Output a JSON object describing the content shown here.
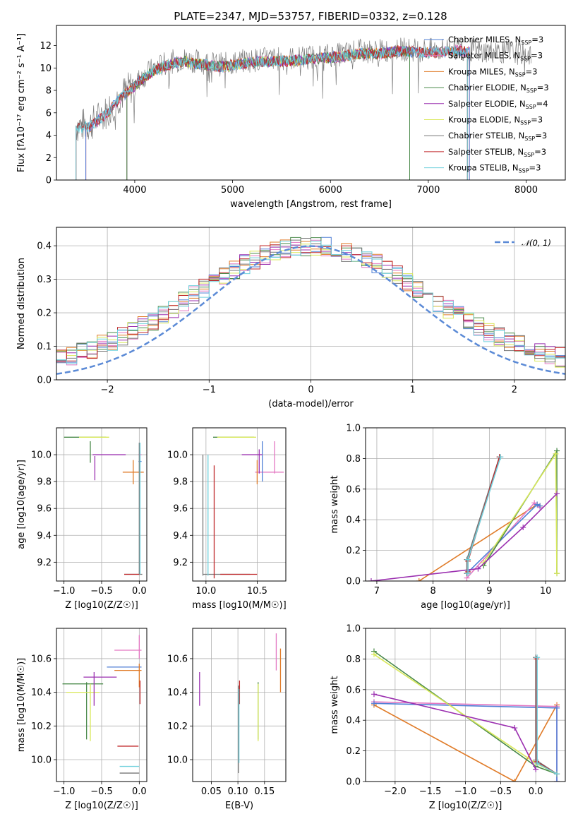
{
  "title": "PLATE=2347, MJD=53757, FIBERID=0332, z=0.128",
  "colors": {
    "Chabrier MILES": "#4f7fd6",
    "Salpeter MILES": "#e377c2",
    "Kroupa MILES": "#e07b28",
    "Chabrier ELODIE": "#4a8a4a",
    "Salpeter ELODIE": "#9b30b0",
    "Kroupa ELODIE": "#d9e85a",
    "Chabrier STELIB": "#777777",
    "Salpeter STELIB": "#c0282a",
    "Kroupa STELIB": "#6fd0dc"
  },
  "chart_data": [
    {
      "id": "spectrum",
      "type": "line",
      "xlabel": "wavelength [Angstrom, rest frame]",
      "ylabel": "Flux [f$_\\lambda$10$^{-17}$ erg cm$^{-2}$ s$^{-1}$ A$^{-1}$]",
      "ylabel_display": "Flux [fλ10⁻¹⁷ erg cm⁻² s⁻¹ A⁻¹]",
      "xlim": [
        3200,
        8400
      ],
      "ylim": [
        0,
        13.8
      ],
      "xticks": [
        4000,
        5000,
        6000,
        7000,
        8000
      ],
      "yticks": [
        0,
        2,
        4,
        6,
        8,
        10,
        12
      ],
      "legend_position": "top-right",
      "legend": [
        {
          "name": "Chabrier MILES",
          "nssp": "3"
        },
        {
          "name": "Salpeter MILES",
          "nssp": "3"
        },
        {
          "name": "Kroupa MILES",
          "nssp": "3"
        },
        {
          "name": "Chabrier ELODIE",
          "nssp": "3"
        },
        {
          "name": "Salpeter ELODIE",
          "nssp": "4"
        },
        {
          "name": "Kroupa ELODIE",
          "nssp": "3"
        },
        {
          "name": "Chabrier STELIB",
          "nssp": "3"
        },
        {
          "name": "Salpeter STELIB",
          "nssp": "3"
        },
        {
          "name": "Kroupa STELIB",
          "nssp": "3"
        }
      ],
      "continuum": [
        [
          3400,
          4.8
        ],
        [
          3550,
          5.0
        ],
        [
          3700,
          6.0
        ],
        [
          3850,
          7.5
        ],
        [
          3950,
          8.2
        ],
        [
          4050,
          9.0
        ],
        [
          4200,
          10.0
        ],
        [
          4350,
          10.5
        ],
        [
          4500,
          10.8
        ],
        [
          4700,
          10.5
        ],
        [
          4900,
          10.3
        ],
        [
          5100,
          10.6
        ],
        [
          5300,
          10.8
        ],
        [
          5500,
          10.8
        ],
        [
          5700,
          10.9
        ],
        [
          5900,
          11.1
        ],
        [
          6100,
          11.2
        ],
        [
          6300,
          11.5
        ],
        [
          6500,
          11.5
        ],
        [
          6700,
          11.7
        ],
        [
          6900,
          11.6
        ],
        [
          7100,
          11.6
        ],
        [
          7300,
          11.8
        ],
        [
          7500,
          11.5
        ],
        [
          7700,
          11.5
        ],
        [
          7900,
          11.4
        ],
        [
          8050,
          11.2
        ]
      ],
      "model_ranges": [
        {
          "name": "Kroupa MILES",
          "x": [
            3500,
            7420
          ]
        },
        {
          "name": "Salpeter MILES",
          "x": [
            3500,
            7420
          ]
        },
        {
          "name": "Chabrier MILES",
          "x": [
            3500,
            7420
          ]
        },
        {
          "name": "Kroupa ELODIE",
          "x": [
            3920,
            6810
          ]
        },
        {
          "name": "Salpeter ELODIE",
          "x": [
            3920,
            6810
          ]
        },
        {
          "name": "Chabrier ELODIE",
          "x": [
            3920,
            6810
          ]
        },
        {
          "name": "Chabrier STELIB",
          "x": [
            3400,
            7400
          ]
        },
        {
          "name": "Salpeter STELIB",
          "x": [
            3400,
            7400
          ]
        },
        {
          "name": "Kroupa STELIB",
          "x": [
            3400,
            7400
          ]
        }
      ]
    },
    {
      "id": "residuals",
      "type": "line",
      "xlabel": "(data-model)/error",
      "ylabel": "Normed distribution",
      "xlim": [
        -2.5,
        2.5
      ],
      "ylim": [
        0,
        0.455
      ],
      "xticks": [
        -2,
        -1,
        0,
        1,
        2
      ],
      "yticks": [
        0.0,
        0.1,
        0.2,
        0.3,
        0.4
      ],
      "grid": true,
      "legend_position": "top-right",
      "reference": {
        "name": "N(0,1)",
        "mean": 0,
        "sigma": 1
      },
      "bin_width": 0.1,
      "x_start": -2.5
    },
    {
      "id": "age_vs_Z",
      "type": "scatter",
      "xlabel": "Z [log10(Z/Z☉)]",
      "ylabel": "age  [log10(age/yr)]",
      "xlim": [
        -1.1,
        0.1
      ],
      "ylim": [
        9.06,
        10.2
      ],
      "xticks": [
        -1.0,
        -0.5,
        0.0
      ],
      "yticks": [
        9.2,
        9.4,
        9.6,
        9.8,
        10.0
      ],
      "grid": true,
      "points": [
        {
          "s": "Kroupa MILES",
          "x": -0.08,
          "y": 9.87,
          "ex": 0.14,
          "ey": 0.09
        },
        {
          "s": "Salpeter MILES",
          "x": 0.01,
          "y": 10.0,
          "ex": 0.02,
          "ey": 0.05
        },
        {
          "s": "Chabrier MILES",
          "x": 0.01,
          "y": 9.95,
          "ex": 0.02,
          "ey": 0.08
        },
        {
          "s": "Chabrier ELODIE",
          "x": -0.72,
          "y": 10.13,
          "ex": 0.28,
          "ey": 0.0
        },
        {
          "s": "Chabrier ELODIE",
          "x": -0.65,
          "y": 10.02,
          "ex": 0.0,
          "ey": 0.08
        },
        {
          "s": "Kroupa ELODIE",
          "x": -0.6,
          "y": 10.13,
          "ex": 0.2,
          "ey": 0.0
        },
        {
          "s": "Salpeter ELODIE",
          "x": -0.4,
          "y": 10.0,
          "ex": 0.22,
          "ey": 0.0
        },
        {
          "s": "Salpeter ELODIE",
          "x": -0.59,
          "y": 9.9,
          "ex": 0.0,
          "ey": 0.09
        },
        {
          "s": "Chabrier STELIB",
          "x": -0.08,
          "y": 9.11,
          "ex": 0.12,
          "ey": 0.0
        },
        {
          "s": "Chabrier STELIB",
          "x": 0.0,
          "y": 9.6,
          "ex": 0.0,
          "ey": 0.49
        },
        {
          "s": "Salpeter STELIB",
          "x": -0.1,
          "y": 9.11,
          "ex": 0.1,
          "ey": 0.0
        },
        {
          "s": "Kroupa STELIB",
          "x": 0.01,
          "y": 9.6,
          "ex": 0.0,
          "ey": 0.49
        }
      ]
    },
    {
      "id": "age_vs_mass",
      "type": "scatter",
      "xlabel": "mass [log10(M/M☉)]",
      "ylabel": "",
      "xlim": [
        9.87,
        10.78
      ],
      "ylim": [
        9.06,
        10.2
      ],
      "xticks": [
        10.0,
        10.5
      ],
      "yticks": [
        9.2,
        9.4,
        9.6,
        9.8,
        10.0
      ],
      "grid": true,
      "points": [
        {
          "s": "Salpeter MILES",
          "x": 10.62,
          "y": 9.87,
          "ex": 0.14,
          "ey": 0.0
        },
        {
          "s": "Salpeter MILES",
          "x": 10.67,
          "y": 9.98,
          "ex": 0.0,
          "ey": 0.12
        },
        {
          "s": "Kroupa MILES",
          "x": 10.5,
          "y": 9.87,
          "ex": 0.0,
          "ey": 0.09
        },
        {
          "s": "Chabrier MILES",
          "x": 10.55,
          "y": 9.95,
          "ex": 0.0,
          "ey": 0.15
        },
        {
          "s": "Chabrier ELODIE",
          "x": 10.27,
          "y": 10.13,
          "ex": 0.2,
          "ey": 0.0
        },
        {
          "s": "Kroupa ELODIE",
          "x": 10.3,
          "y": 10.13,
          "ex": 0.19,
          "ey": 0.0
        },
        {
          "s": "Salpeter ELODIE",
          "x": 10.45,
          "y": 10.0,
          "ex": 0.1,
          "ey": 0.0
        },
        {
          "s": "Salpeter ELODIE",
          "x": 10.52,
          "y": 9.95,
          "ex": 0.0,
          "ey": 0.09
        },
        {
          "s": "Chabrier STELIB",
          "x": 9.97,
          "y": 9.55,
          "ex": 0.0,
          "ey": 0.45
        },
        {
          "s": "Chabrier STELIB",
          "x": 10.2,
          "y": 9.11,
          "ex": 0.23,
          "ey": 0.0
        },
        {
          "s": "Salpeter STELIB",
          "x": 10.08,
          "y": 9.5,
          "ex": 0.0,
          "ey": 0.42
        },
        {
          "s": "Salpeter STELIB",
          "x": 10.32,
          "y": 9.11,
          "ex": 0.18,
          "ey": 0.0
        },
        {
          "s": "Kroupa STELIB",
          "x": 10.02,
          "y": 9.55,
          "ex": 0.0,
          "ey": 0.45
        }
      ]
    },
    {
      "id": "weight_vs_age",
      "type": "line",
      "xlabel": "age  [log10(age/yr)]",
      "ylabel": "mass weight",
      "xlim": [
        6.8,
        10.35
      ],
      "ylim": [
        0,
        1.0
      ],
      "xticks": [
        7,
        8,
        9,
        10
      ],
      "yticks": [
        0.0,
        0.2,
        0.4,
        0.6,
        0.8,
        1.0
      ],
      "grid": true,
      "series": [
        {
          "s": "Kroupa MILES",
          "points": [
            [
              7.75,
              0.0
            ],
            [
              9.85,
              0.5
            ],
            [
              9.9,
              0.49
            ]
          ]
        },
        {
          "s": "Salpeter MILES",
          "points": [
            [
              8.6,
              0.02
            ],
            [
              9.8,
              0.51
            ],
            [
              9.9,
              0.48
            ]
          ]
        },
        {
          "s": "Chabrier MILES",
          "points": [
            [
              8.6,
              0.05
            ],
            [
              9.85,
              0.5
            ],
            [
              9.9,
              0.49
            ]
          ]
        },
        {
          "s": "Chabrier ELODIE",
          "points": [
            [
              8.9,
              0.1
            ],
            [
              10.2,
              0.85
            ],
            [
              10.2,
              0.05
            ]
          ]
        },
        {
          "s": "Kroupa ELODIE",
          "points": [
            [
              8.9,
              0.12
            ],
            [
              10.18,
              0.83
            ],
            [
              10.2,
              0.05
            ]
          ]
        },
        {
          "s": "Salpeter ELODIE",
          "points": [
            [
              6.9,
              0.0
            ],
            [
              8.8,
              0.08
            ],
            [
              9.6,
              0.35
            ],
            [
              10.2,
              0.57
            ]
          ]
        },
        {
          "s": "Chabrier STELIB",
          "points": [
            [
              8.6,
              0.05
            ],
            [
              8.6,
              0.14
            ],
            [
              9.18,
              0.81
            ]
          ]
        },
        {
          "s": "Salpeter STELIB",
          "points": [
            [
              8.62,
              0.06
            ],
            [
              8.62,
              0.13
            ],
            [
              9.18,
              0.81
            ]
          ]
        },
        {
          "s": "Kroupa STELIB",
          "points": [
            [
              8.62,
              0.05
            ],
            [
              8.62,
              0.14
            ],
            [
              9.2,
              0.81
            ]
          ]
        }
      ]
    },
    {
      "id": "mass_vs_Z",
      "type": "scatter",
      "xlabel": "Z [log10(Z/Z☉)]",
      "ylabel": "mass [log10(M/M☉)]",
      "xlim": [
        -1.1,
        0.1
      ],
      "ylim": [
        9.87,
        10.78
      ],
      "xticks": [
        -1.0,
        -0.5,
        0.0
      ],
      "yticks": [
        10.0,
        10.2,
        10.4,
        10.6
      ],
      "grid": true,
      "points": [
        {
          "s": "Salpeter MILES",
          "x": -0.15,
          "y": 10.65,
          "ex": 0.18,
          "ey": 0.0
        },
        {
          "s": "Salpeter MILES",
          "x": 0.0,
          "y": 10.67,
          "ex": 0.0,
          "ey": 0.07
        },
        {
          "s": "Chabrier MILES",
          "x": -0.2,
          "y": 10.55,
          "ex": 0.23,
          "ey": 0.0
        },
        {
          "s": "Kroupa MILES",
          "x": -0.15,
          "y": 10.53,
          "ex": 0.18,
          "ey": 0.0
        },
        {
          "s": "Kroupa MILES",
          "x": 0.0,
          "y": 10.5,
          "ex": 0.0,
          "ey": 0.07
        },
        {
          "s": "Chabrier ELODIE",
          "x": -0.75,
          "y": 10.45,
          "ex": 0.27,
          "ey": 0.0
        },
        {
          "s": "Chabrier ELODIE",
          "x": -0.7,
          "y": 10.29,
          "ex": 0.0,
          "ey": 0.17
        },
        {
          "s": "Kroupa ELODIE",
          "x": -0.75,
          "y": 10.4,
          "ex": 0.22,
          "ey": 0.0
        },
        {
          "s": "Kroupa ELODIE",
          "x": -0.65,
          "y": 10.28,
          "ex": 0.0,
          "ey": 0.17
        },
        {
          "s": "Salpeter ELODIE",
          "x": -0.52,
          "y": 10.49,
          "ex": 0.22,
          "ey": 0.0
        },
        {
          "s": "Salpeter ELODIE",
          "x": -0.6,
          "y": 10.42,
          "ex": 0.0,
          "ey": 0.1
        },
        {
          "s": "Salpeter STELIB",
          "x": -0.15,
          "y": 10.08,
          "ex": 0.14,
          "ey": 0.0
        },
        {
          "s": "Salpeter STELIB",
          "x": 0.01,
          "y": 10.4,
          "ex": 0.0,
          "ey": 0.07
        },
        {
          "s": "Kroupa STELIB",
          "x": -0.13,
          "y": 9.96,
          "ex": 0.13,
          "ey": 0.0
        },
        {
          "s": "Chabrier STELIB",
          "x": -0.13,
          "y": 9.92,
          "ex": 0.13,
          "ey": 0.0
        }
      ]
    },
    {
      "id": "mass_vs_ebv",
      "type": "scatter",
      "xlabel": "E(B-V)",
      "ylabel": "",
      "xlim": [
        0.015,
        0.19
      ],
      "ylim": [
        9.87,
        10.78
      ],
      "xticks": [
        0.05,
        0.1,
        0.15
      ],
      "yticks": [
        10.0,
        10.2,
        10.4,
        10.6
      ],
      "grid": true,
      "points": [
        {
          "s": "Salpeter ELODIE",
          "x": 0.028,
          "y": 10.42,
          "ex": 0.0,
          "ey": 0.1
        },
        {
          "s": "Salpeter STELIB",
          "x": 0.103,
          "y": 10.4,
          "ex": 0.0,
          "ey": 0.07
        },
        {
          "s": "Chabrier STELIB",
          "x": 0.101,
          "y": 10.18,
          "ex": 0.0,
          "ey": 0.26
        },
        {
          "s": "Kroupa STELIB",
          "x": 0.102,
          "y": 10.2,
          "ex": 0.0,
          "ey": 0.22
        },
        {
          "s": "Chabrier ELODIE",
          "x": 0.138,
          "y": 10.29,
          "ex": 0.0,
          "ey": 0.17
        },
        {
          "s": "Kroupa ELODIE",
          "x": 0.138,
          "y": 10.28,
          "ex": 0.0,
          "ey": 0.17
        },
        {
          "s": "Salpeter MILES",
          "x": 0.172,
          "y": 10.64,
          "ex": 0.0,
          "ey": 0.11
        },
        {
          "s": "Kroupa MILES",
          "x": 0.18,
          "y": 10.53,
          "ex": 0.0,
          "ey": 0.13
        }
      ]
    },
    {
      "id": "weight_vs_Z",
      "type": "line",
      "xlabel": "Z [log10(Z/Z☉)]",
      "ylabel": "mass weight",
      "xlim": [
        -2.42,
        0.42
      ],
      "ylim": [
        0,
        1.0
      ],
      "xticks": [
        -2.0,
        -1.5,
        -1.0,
        -0.5,
        0.0
      ],
      "yticks": [
        0.0,
        0.2,
        0.4,
        0.6,
        0.8,
        1.0
      ],
      "grid": true,
      "series": [
        {
          "s": "Kroupa MILES",
          "points": [
            [
              -2.3,
              0.5
            ],
            [
              -0.3,
              0.0
            ],
            [
              0.3,
              0.5
            ]
          ]
        },
        {
          "s": "Salpeter MILES",
          "points": [
            [
              -2.3,
              0.52
            ],
            [
              0.3,
              0.49
            ],
            [
              0.3,
              0.0
            ]
          ]
        },
        {
          "s": "Chabrier MILES",
          "points": [
            [
              -2.3,
              0.51
            ],
            [
              0.3,
              0.48
            ],
            [
              0.3,
              0.0
            ]
          ]
        },
        {
          "s": "Chabrier ELODIE",
          "points": [
            [
              -2.3,
              0.85
            ],
            [
              0.0,
              0.1
            ],
            [
              0.3,
              0.05
            ]
          ]
        },
        {
          "s": "Kroupa ELODIE",
          "points": [
            [
              -2.3,
              0.83
            ],
            [
              0.0,
              0.12
            ],
            [
              0.3,
              0.05
            ]
          ]
        },
        {
          "s": "Salpeter ELODIE",
          "points": [
            [
              -2.3,
              0.57
            ],
            [
              -0.3,
              0.35
            ],
            [
              0.0,
              0.08
            ]
          ]
        },
        {
          "s": "Chabrier STELIB",
          "points": [
            [
              0.0,
              0.81
            ],
            [
              0.0,
              0.14
            ],
            [
              0.3,
              0.05
            ]
          ]
        },
        {
          "s": "Salpeter STELIB",
          "points": [
            [
              0.01,
              0.8
            ],
            [
              0.01,
              0.13
            ],
            [
              0.3,
              0.05
            ]
          ]
        },
        {
          "s": "Kroupa STELIB",
          "points": [
            [
              0.02,
              0.81
            ],
            [
              0.02,
              0.12
            ],
            [
              0.3,
              0.05
            ]
          ]
        }
      ]
    }
  ]
}
